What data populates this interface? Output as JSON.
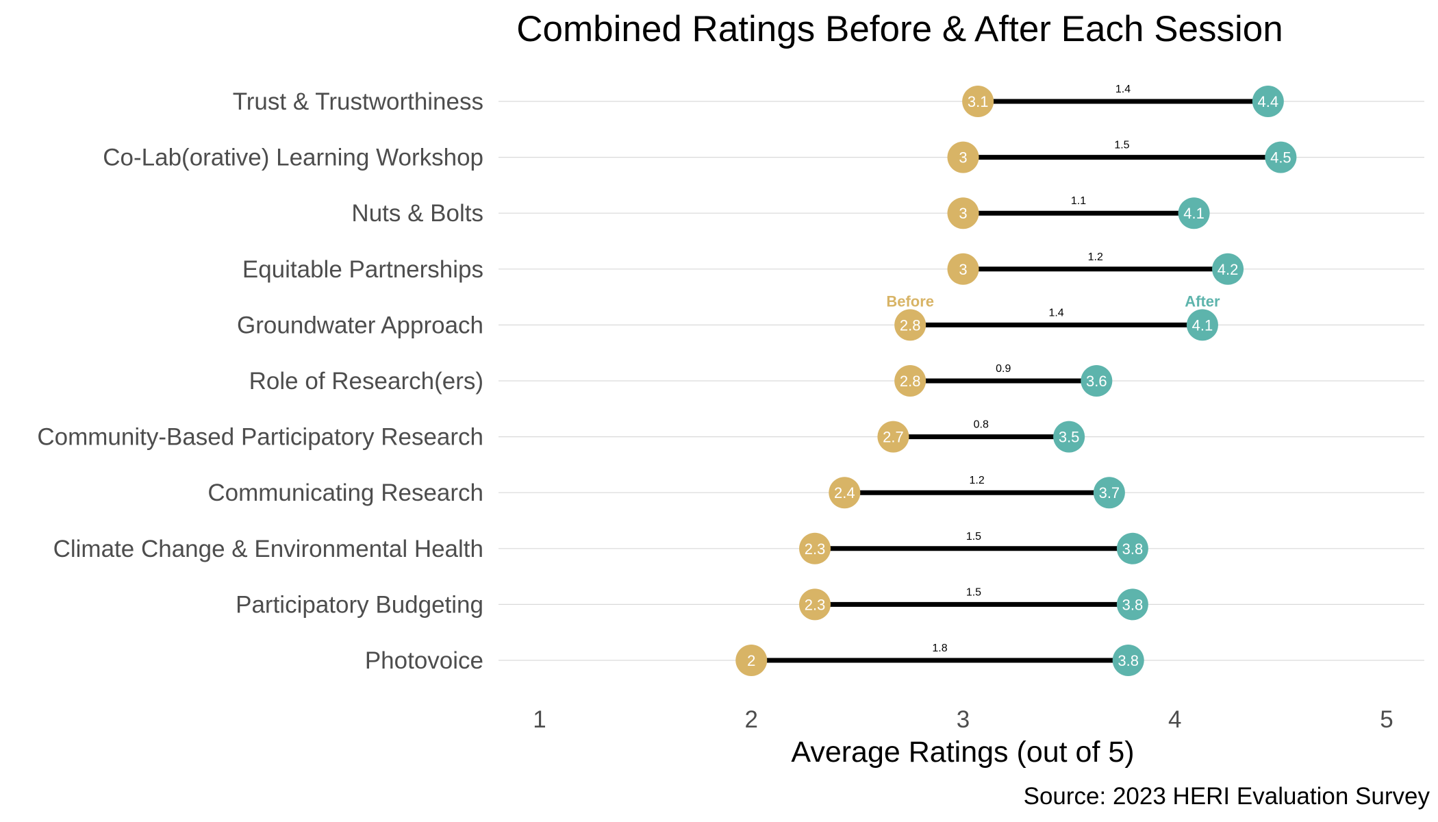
{
  "chart_data": {
    "type": "dumbbell",
    "title": "Combined Ratings Before & After Each Session",
    "xlabel": "Average Ratings (out of 5)",
    "caption": "Source: 2023 HERI Evaluation Survey",
    "xlim": [
      1,
      5
    ],
    "xticks": [
      1,
      2,
      3,
      4,
      5
    ],
    "grid": "horizontal per category",
    "colors": {
      "before": "#D8B466",
      "after": "#5DB4AC",
      "segment": "#000000",
      "grid": "#d9d9d9"
    },
    "series_labels": {
      "before": "Before",
      "after": "After"
    },
    "categories": [
      "Trust & Trustworthiness",
      "Co-Lab(orative) Learning Workshop",
      "Nuts & Bolts",
      "Equitable Partnerships",
      "Groundwater Approach",
      "Role of Research(ers)",
      "Community-Based Participatory Research",
      "Communicating Research",
      "Climate Change & Environmental Health",
      "Participatory Budgeting",
      "Photovoice"
    ],
    "before": [
      3.07,
      3.0,
      3.0,
      3.0,
      2.75,
      2.75,
      2.67,
      2.44,
      2.3,
      2.3,
      2.0
    ],
    "after": [
      4.44,
      4.5,
      4.09,
      4.25,
      4.13,
      3.63,
      3.5,
      3.69,
      3.8,
      3.8,
      3.78
    ],
    "before_labels": [
      "3.1",
      "3",
      "3",
      "3",
      "2.8",
      "2.8",
      "2.7",
      "2.4",
      "2.3",
      "2.3",
      "2"
    ],
    "after_labels": [
      "4.4",
      "4.5",
      "4.1",
      "4.2",
      "4.1",
      "3.6",
      "3.5",
      "3.7",
      "3.8",
      "3.8",
      "3.8"
    ],
    "diff_labels": [
      "1.4",
      "1.5",
      "1.1",
      "1.2",
      "1.4",
      "0.9",
      "0.8",
      "1.2",
      "1.5",
      "1.5",
      "1.8"
    ],
    "legend_row": "Groundwater Approach"
  }
}
